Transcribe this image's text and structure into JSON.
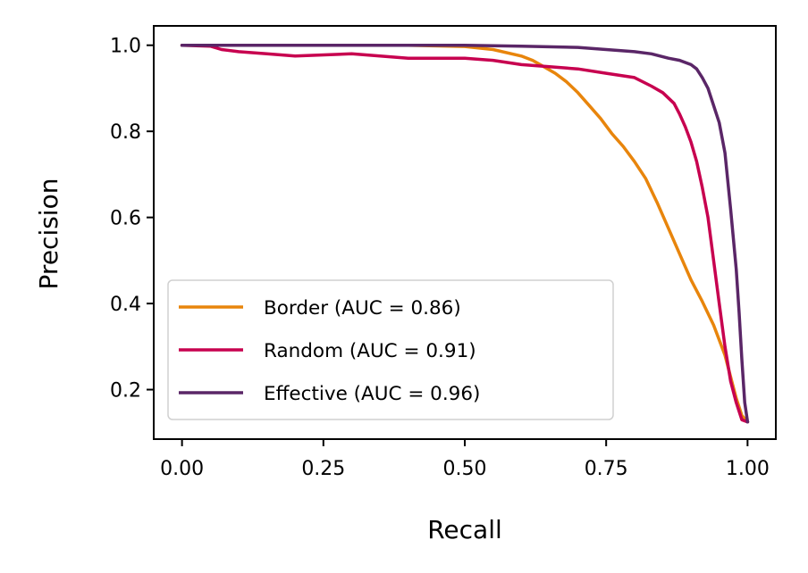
{
  "chart_data": {
    "type": "line",
    "title": "",
    "xlabel": "Recall",
    "ylabel": "Precision",
    "xlim": [
      -0.05,
      1.05
    ],
    "ylim": [
      0.085,
      1.045
    ],
    "xticks": [
      0.0,
      0.25,
      0.5,
      0.75,
      1.0
    ],
    "xtick_labels": [
      "0.00",
      "0.25",
      "0.50",
      "0.75",
      "1.00"
    ],
    "yticks": [
      0.2,
      0.4,
      0.6,
      0.8,
      1.0
    ],
    "ytick_labels": [
      "0.2",
      "0.4",
      "0.6",
      "0.8",
      "1.0"
    ],
    "grid": false,
    "legend_position": "lower-left",
    "series": [
      {
        "name": "Border (AUC = 0.86)",
        "color": "#e8850c",
        "x": [
          0.0,
          0.1,
          0.2,
          0.3,
          0.4,
          0.5,
          0.55,
          0.6,
          0.62,
          0.64,
          0.66,
          0.68,
          0.7,
          0.72,
          0.74,
          0.76,
          0.78,
          0.8,
          0.82,
          0.84,
          0.86,
          0.88,
          0.9,
          0.92,
          0.94,
          0.96,
          0.98,
          0.99,
          1.0
        ],
        "y": [
          1.0,
          1.0,
          1.0,
          1.0,
          1.0,
          0.997,
          0.99,
          0.975,
          0.965,
          0.95,
          0.935,
          0.915,
          0.89,
          0.86,
          0.83,
          0.795,
          0.765,
          0.73,
          0.69,
          0.635,
          0.575,
          0.515,
          0.455,
          0.405,
          0.35,
          0.28,
          0.18,
          0.14,
          0.125
        ]
      },
      {
        "name": "Random (AUC = 0.91)",
        "color": "#c7004f",
        "x": [
          0.0,
          0.05,
          0.07,
          0.1,
          0.15,
          0.2,
          0.3,
          0.4,
          0.5,
          0.55,
          0.6,
          0.65,
          0.7,
          0.75,
          0.8,
          0.83,
          0.85,
          0.87,
          0.88,
          0.89,
          0.9,
          0.91,
          0.92,
          0.93,
          0.94,
          0.95,
          0.96,
          0.97,
          0.98,
          0.99,
          1.0
        ],
        "y": [
          1.0,
          0.998,
          0.99,
          0.985,
          0.98,
          0.975,
          0.98,
          0.97,
          0.97,
          0.965,
          0.955,
          0.95,
          0.945,
          0.935,
          0.925,
          0.905,
          0.89,
          0.865,
          0.84,
          0.81,
          0.775,
          0.73,
          0.67,
          0.6,
          0.5,
          0.4,
          0.3,
          0.22,
          0.17,
          0.13,
          0.125
        ]
      },
      {
        "name": "Effective (AUC = 0.96)",
        "color": "#5a2667",
        "x": [
          0.0,
          0.2,
          0.4,
          0.5,
          0.6,
          0.7,
          0.75,
          0.8,
          0.83,
          0.86,
          0.88,
          0.9,
          0.91,
          0.92,
          0.93,
          0.94,
          0.95,
          0.96,
          0.97,
          0.98,
          0.985,
          0.99,
          0.995,
          1.0
        ],
        "y": [
          1.0,
          1.0,
          1.0,
          1.0,
          0.998,
          0.995,
          0.99,
          0.985,
          0.98,
          0.97,
          0.965,
          0.955,
          0.945,
          0.925,
          0.9,
          0.86,
          0.82,
          0.75,
          0.62,
          0.48,
          0.38,
          0.27,
          0.17,
          0.125
        ]
      }
    ]
  }
}
